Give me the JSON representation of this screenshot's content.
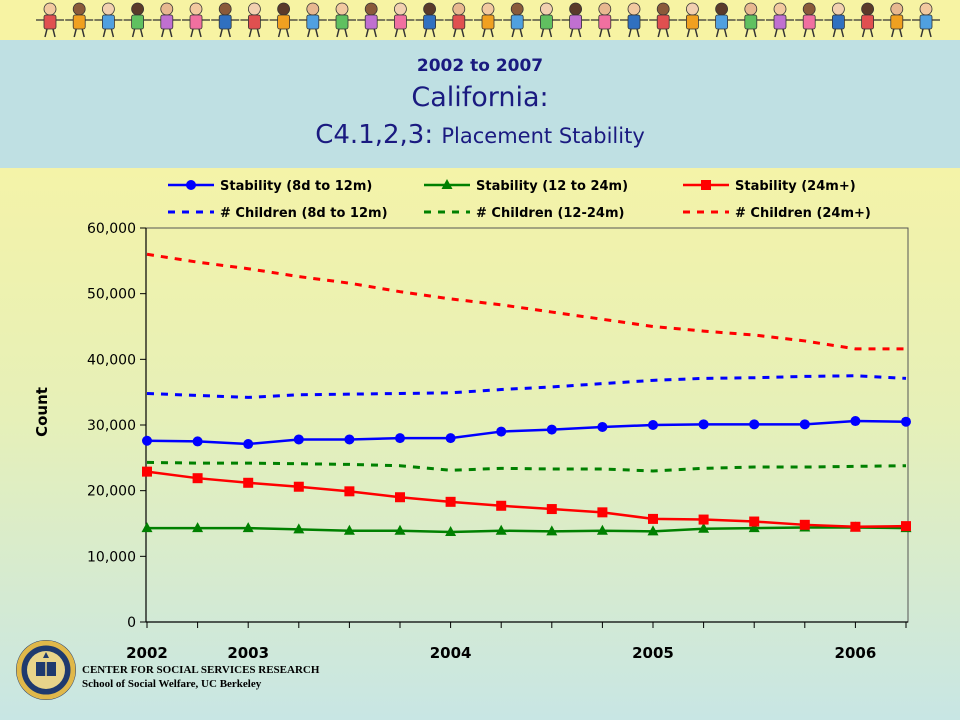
{
  "header": {
    "range": "2002 to 2007",
    "state": "California:",
    "metric_code": "C4.1,2,3:",
    "metric_name": "Placement Stability"
  },
  "footer": {
    "org_line1": "CENTER FOR SOCIAL SERVICES RESEARCH",
    "org_line2": "School of Social Welfare, UC Berkeley",
    "seal": "university-seal-icon"
  },
  "banner": {
    "icon": "children-holding-hands-icon"
  },
  "chart_data": {
    "type": "line",
    "title": "",
    "xlabel": "",
    "ylabel": "Count",
    "ylim": [
      0,
      60000
    ],
    "yticks": [
      0,
      10000,
      20000,
      30000,
      40000,
      50000,
      60000
    ],
    "ytick_labels": [
      "0",
      "10,000",
      "20,000",
      "30,000",
      "40,000",
      "50,000",
      "60,000"
    ],
    "x_tick_labels": [
      {
        "label": "2002",
        "index": 0
      },
      {
        "label": "2003",
        "index": 2
      },
      {
        "label": "2004",
        "index": 6
      },
      {
        "label": "2005",
        "index": 10
      },
      {
        "label": "2006",
        "index": 14
      }
    ],
    "grid": false,
    "legend_placement": "top",
    "series": [
      {
        "name": "Stability (8d to 12m)",
        "color": "#0000ff",
        "marker": "circle",
        "style": "solid",
        "values": [
          27600,
          27500,
          27100,
          27800,
          27800,
          28000,
          28000,
          29000,
          29300,
          29700,
          30000,
          30100,
          30100,
          30100,
          30600,
          30500
        ]
      },
      {
        "name": "Stability (12 to 24m)",
        "color": "#008000",
        "marker": "triangle",
        "style": "solid",
        "values": [
          14300,
          14300,
          14300,
          14100,
          13900,
          13900,
          13700,
          13900,
          13800,
          13900,
          13800,
          14200,
          14300,
          14400,
          14400,
          14300
        ]
      },
      {
        "name": "Stability (24m+)",
        "color": "#ff0000",
        "marker": "square",
        "style": "solid",
        "values": [
          22900,
          21900,
          21200,
          20600,
          19900,
          19000,
          18300,
          17700,
          17200,
          16700,
          15700,
          15600,
          15300,
          14800,
          14500,
          14600
        ]
      },
      {
        "name": "# Children (8d to 12m)",
        "color": "#0000ff",
        "marker": "none",
        "style": "dashed",
        "values": [
          34800,
          34500,
          34200,
          34600,
          34700,
          34800,
          34900,
          35400,
          35800,
          36300,
          36800,
          37100,
          37200,
          37400,
          37500,
          37100
        ]
      },
      {
        "name": "# Children (12-24m)",
        "color": "#008000",
        "marker": "none",
        "style": "dashed",
        "values": [
          24300,
          24200,
          24200,
          24100,
          24000,
          23800,
          23100,
          23400,
          23300,
          23300,
          23000,
          23400,
          23600,
          23600,
          23700,
          23800
        ]
      },
      {
        "name": "# Children (24m+)",
        "color": "#ff0000",
        "marker": "none",
        "style": "dashed",
        "values": [
          56000,
          54800,
          53800,
          52600,
          51600,
          50300,
          49200,
          48300,
          47200,
          46100,
          45000,
          44300,
          43700,
          42800,
          41600,
          41600
        ]
      }
    ]
  }
}
